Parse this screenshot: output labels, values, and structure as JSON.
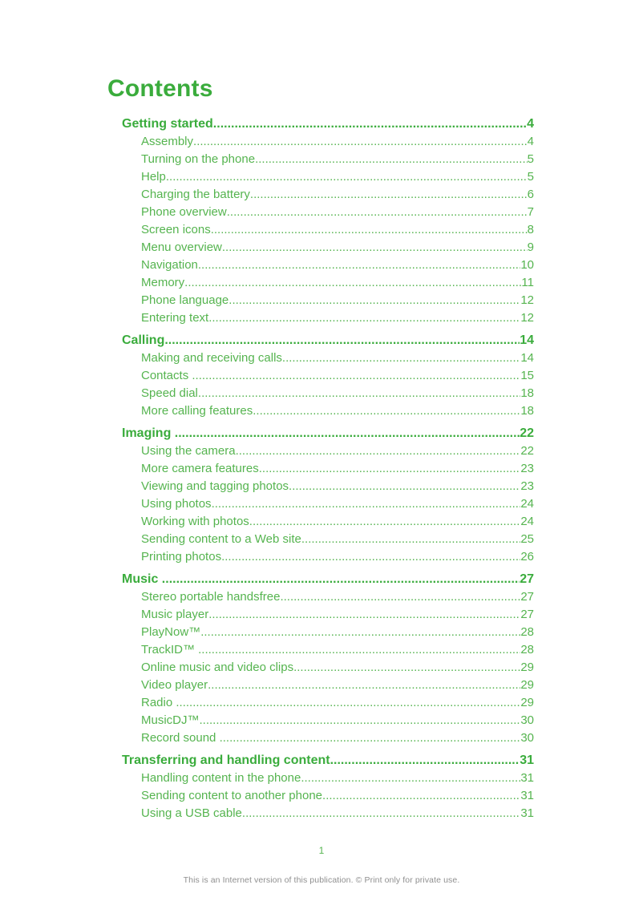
{
  "colors": {
    "heading_green": "#3aac3c",
    "body_green": "#55b44f",
    "footer_gray": "#8f8f8f"
  },
  "page": {
    "title": "Contents",
    "page_number": "1",
    "disclaimer": "This is an Internet version of this publication. © Print only for private use."
  },
  "toc": {
    "sections": [
      {
        "label": "Getting started",
        "page": "4",
        "items": [
          {
            "label": "Assembly",
            "page": "4"
          },
          {
            "label": "Turning on the phone",
            "page": "5"
          },
          {
            "label": "Help",
            "page": "5"
          },
          {
            "label": "Charging the battery",
            "page": "6"
          },
          {
            "label": "Phone overview",
            "page": "7"
          },
          {
            "label": "Screen icons",
            "page": "8"
          },
          {
            "label": "Menu overview",
            "page": "9"
          },
          {
            "label": "Navigation",
            "page": "10"
          },
          {
            "label": "Memory",
            "page": "11"
          },
          {
            "label": "Phone language",
            "page": "12"
          },
          {
            "label": "Entering text",
            "page": "12"
          }
        ]
      },
      {
        "label": "Calling",
        "page": "14",
        "items": [
          {
            "label": "Making and receiving calls",
            "page": "14"
          },
          {
            "label": "Contacts ",
            "page": "15"
          },
          {
            "label": "Speed dial",
            "page": "18"
          },
          {
            "label": "More calling features",
            "page": "18"
          }
        ]
      },
      {
        "label": "Imaging ",
        "page": "22",
        "items": [
          {
            "label": "Using the camera",
            "page": "22"
          },
          {
            "label": "More camera features",
            "page": "23"
          },
          {
            "label": "Viewing and tagging photos",
            "page": "23"
          },
          {
            "label": "Using photos",
            "page": "24"
          },
          {
            "label": "Working with photos",
            "page": "24"
          },
          {
            "label": "Sending content to a Web site",
            "page": "25"
          },
          {
            "label": "Printing photos",
            "page": "26"
          }
        ]
      },
      {
        "label": "Music ",
        "page": "27",
        "items": [
          {
            "label": "Stereo portable handsfree",
            "page": "27"
          },
          {
            "label": "Music player",
            "page": "27"
          },
          {
            "label": "PlayNow™",
            "page": "28"
          },
          {
            "label": "TrackID™ ",
            "page": "28"
          },
          {
            "label": "Online music and video clips",
            "page": "29"
          },
          {
            "label": "Video player",
            "page": "29"
          },
          {
            "label": "Radio ",
            "page": "29"
          },
          {
            "label": "MusicDJ™",
            "page": "30"
          },
          {
            "label": "Record sound ",
            "page": "30"
          }
        ]
      },
      {
        "label": "Transferring and handling content",
        "page": "31",
        "items": [
          {
            "label": "Handling content in the phone",
            "page": "31"
          },
          {
            "label": "Sending content to another phone",
            "page": "31"
          },
          {
            "label": "Using a USB cable",
            "page": "31"
          }
        ]
      }
    ]
  }
}
